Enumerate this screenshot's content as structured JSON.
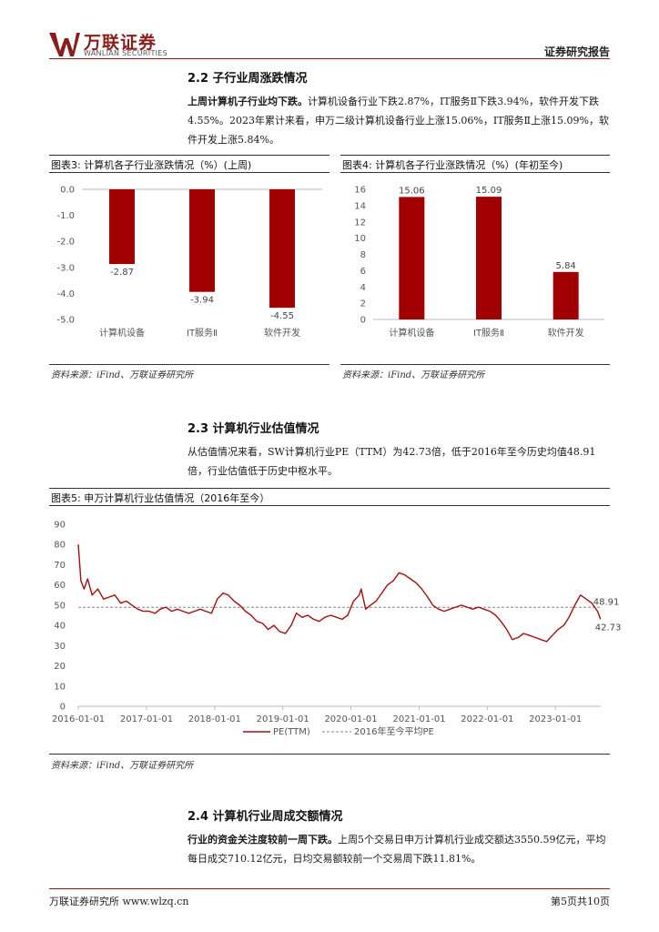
{
  "header": {
    "logo_cn": "万联证券",
    "logo_en": "WANLIAN SECURITIES",
    "report_type": "证券研究报告"
  },
  "section_2_2": {
    "title": "2.2  子行业周涨跌情况",
    "lead": "上周计算机子行业均下跌。",
    "body": "计算机设备行业下跌2.87%，IT服务Ⅱ下跌3.94%，软件开发下跌4.55%。2023年累计来看，申万二级计算机设备行业上涨15.06%，IT服务Ⅱ上涨15.09%，软件开发上涨5.84%。"
  },
  "figure3": {
    "title": "图表3:  计算机各子行业涨跌情况（%）(上周)",
    "source": "资料来源：iFind、万联证券研究所"
  },
  "figure4": {
    "title": "图表4:  计算机各子行业涨跌情况（%）(年初至今)",
    "source": "资料来源：iFind、万联证券研究所"
  },
  "section_2_3": {
    "title": "2.3  计算机行业估值情况",
    "body": "从估值情况来看，SW计算机行业PE（TTM）为42.73倍，低于2016年至今历史均值48.91倍，行业估值低于历史中枢水平。"
  },
  "figure5": {
    "title": "图表5:  申万计算机行业估值情况（2016年至今）",
    "source": "资料来源：iFind、万联证券研究所"
  },
  "section_2_4": {
    "title": "2.4  计算机行业周成交额情况",
    "lead": "行业的资金关注度较前一周下跌。",
    "body": "上周5个交易日申万计算机行业成交额达3550.59亿元，平均每日成交710.12亿元，日均交易额较前一个交易周下跌11.81%。"
  },
  "footer": {
    "left": "万联证券研究所 www.wlzq.cn",
    "right": "第5页共10页"
  },
  "colors": {
    "bar": "#a00000",
    "line": "#a01010",
    "avg_line": "#888888",
    "brand": "#8a1c1c"
  },
  "chart_data": [
    {
      "id": "fig3",
      "type": "bar",
      "categories": [
        "计算机设备",
        "IT服务Ⅱ",
        "软件开发"
      ],
      "values": [
        -2.87,
        -3.94,
        -4.55
      ],
      "value_labels": [
        "-2.87",
        "-3.94",
        "-4.55"
      ],
      "ylim": [
        -5.0,
        0.0
      ],
      "yticks": [
        "0.0",
        "-1.0",
        "-2.0",
        "-3.0",
        "-4.0",
        "-5.0"
      ],
      "ytick_values": [
        0,
        -1,
        -2,
        -3,
        -4,
        -5
      ],
      "grid": false,
      "xlabel": "",
      "ylabel": ""
    },
    {
      "id": "fig4",
      "type": "bar",
      "categories": [
        "计算机设备",
        "IT服务Ⅱ",
        "软件开发"
      ],
      "values": [
        15.06,
        15.09,
        5.84
      ],
      "value_labels": [
        "15.06",
        "15.09",
        "5.84"
      ],
      "ylim": [
        0,
        16
      ],
      "yticks": [
        "16",
        "14",
        "12",
        "10",
        "8",
        "6",
        "4",
        "2",
        "0"
      ],
      "ytick_values": [
        16,
        14,
        12,
        10,
        8,
        6,
        4,
        2,
        0
      ],
      "grid": false,
      "xlabel": "",
      "ylabel": ""
    },
    {
      "id": "fig5",
      "type": "line",
      "ylim": [
        0,
        90
      ],
      "yticks": [
        "90",
        "80",
        "70",
        "60",
        "50",
        "40",
        "30",
        "20",
        "10",
        "0"
      ],
      "ytick_values": [
        90,
        80,
        70,
        60,
        50,
        40,
        30,
        20,
        10,
        0
      ],
      "xlim": [
        "2016-01-01",
        "2023-09-01"
      ],
      "xticks": [
        "2016-01-01",
        "2017-01-01",
        "2018-01-01",
        "2019-01-01",
        "2020-01-01",
        "2021-01-01",
        "2022-01-01",
        "2023-01-01"
      ],
      "legend_placement": "bottom-center",
      "grid": false,
      "series": [
        {
          "name": "PE(TTM)",
          "style": "solid",
          "x": [
            "2016-01-01",
            "2016-01-15",
            "2016-02-01",
            "2016-02-20",
            "2016-03-15",
            "2016-04-15",
            "2016-05-15",
            "2016-06-15",
            "2016-07-15",
            "2016-08-15",
            "2016-09-15",
            "2016-10-15",
            "2016-11-15",
            "2016-12-15",
            "2017-01-15",
            "2017-02-15",
            "2017-03-15",
            "2017-04-15",
            "2017-05-15",
            "2017-06-15",
            "2017-07-15",
            "2017-08-15",
            "2017-09-15",
            "2017-10-15",
            "2017-11-15",
            "2017-12-15",
            "2018-01-15",
            "2018-02-15",
            "2018-03-15",
            "2018-04-15",
            "2018-05-15",
            "2018-06-15",
            "2018-07-15",
            "2018-08-15",
            "2018-09-15",
            "2018-10-15",
            "2018-11-15",
            "2018-12-15",
            "2019-01-15",
            "2019-02-15",
            "2019-03-15",
            "2019-04-15",
            "2019-05-15",
            "2019-06-15",
            "2019-07-15",
            "2019-08-15",
            "2019-09-15",
            "2019-10-15",
            "2019-11-15",
            "2019-12-15",
            "2020-01-15",
            "2020-02-15",
            "2020-02-25",
            "2020-03-20",
            "2020-04-15",
            "2020-05-15",
            "2020-06-15",
            "2020-07-15",
            "2020-08-15",
            "2020-09-15",
            "2020-10-15",
            "2020-11-15",
            "2020-12-15",
            "2021-01-15",
            "2021-02-15",
            "2021-03-15",
            "2021-04-15",
            "2021-05-15",
            "2021-06-15",
            "2021-07-15",
            "2021-08-15",
            "2021-09-15",
            "2021-10-15",
            "2021-11-15",
            "2021-12-15",
            "2022-01-15",
            "2022-02-15",
            "2022-03-15",
            "2022-04-15",
            "2022-05-15",
            "2022-06-15",
            "2022-07-15",
            "2022-08-15",
            "2022-09-15",
            "2022-10-15",
            "2022-11-15",
            "2022-12-15",
            "2023-01-15",
            "2023-02-15",
            "2023-03-15",
            "2023-04-15",
            "2023-05-15",
            "2023-06-15",
            "2023-07-15",
            "2023-08-15",
            "2023-08-31"
          ],
          "y": [
            80,
            62,
            58,
            63,
            55,
            58,
            53,
            54,
            55,
            51,
            52,
            50,
            48,
            47,
            47,
            46,
            48,
            49,
            47,
            48,
            47,
            46,
            47,
            48,
            47,
            46,
            53,
            56,
            55,
            52,
            50,
            47,
            45,
            42,
            41,
            38,
            40,
            37,
            36,
            40,
            46,
            44,
            45,
            43,
            42,
            44,
            45,
            44,
            43,
            45,
            52,
            55,
            58,
            48,
            50,
            52,
            56,
            60,
            62,
            66,
            65,
            63,
            61,
            58,
            54,
            50,
            48,
            47,
            48,
            49,
            50,
            49,
            48,
            49,
            48,
            47,
            45,
            42,
            38,
            33,
            34,
            36,
            35,
            34,
            33,
            32,
            35,
            38,
            40,
            44,
            50,
            55,
            53,
            51,
            47,
            43
          ]
        },
        {
          "name": "2016年至今平均PE",
          "style": "dashed",
          "x": [
            "2016-01-01",
            "2023-08-31"
          ],
          "y": [
            48.91,
            48.91
          ]
        }
      ],
      "end_labels": [
        "48.91",
        "42.73"
      ]
    }
  ]
}
